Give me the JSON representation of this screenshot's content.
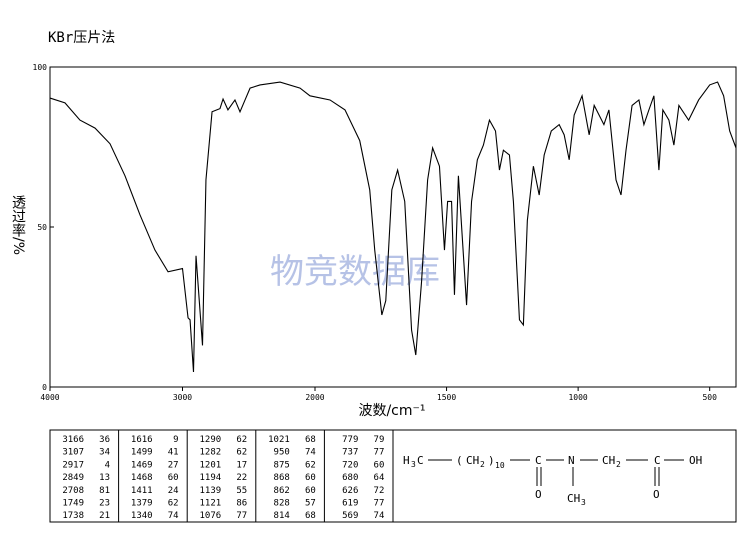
{
  "chart_data": {
    "type": "line",
    "title": "KBr压片法",
    "xlabel": "波数/cm⁻¹",
    "ylabel": "透过率/%",
    "watermark": "物竞数据库",
    "x": [
      4000,
      3887,
      3774,
      3660,
      3547,
      3434,
      3321,
      3208,
      3109,
      3000,
      2958,
      2943,
      2917,
      2898,
      2849,
      2823,
      2777,
      2717,
      2694,
      2657,
      2604,
      2566,
      2528,
      2490,
      2415,
      2264,
      2113,
      2038,
      1943,
      1886,
      1830,
      1792,
      1773,
      1746,
      1731,
      1708,
      1686,
      1659,
      1633,
      1617,
      1595,
      1572,
      1553,
      1527,
      1508,
      1496,
      1481,
      1470,
      1455,
      1424,
      1405,
      1383,
      1360,
      1337,
      1314,
      1299,
      1284,
      1261,
      1246,
      1223,
      1208,
      1193,
      1170,
      1148,
      1129,
      1102,
      1072,
      1053,
      1034,
      1015,
      985,
      958,
      939,
      902,
      883,
      856,
      837,
      818,
      795,
      769,
      750,
      731,
      712,
      693,
      678,
      655,
      636,
      617,
      580,
      542,
      500,
      470,
      447,
      424,
      400
    ],
    "values": [
      90.3,
      88.8,
      83.4,
      80.9,
      76,
      66,
      53.8,
      42.8,
      36,
      37,
      21.6,
      21,
      4.7,
      41,
      13,
      64.7,
      86,
      87,
      90,
      86.6,
      89.7,
      86,
      89.7,
      93.4,
      94.4,
      95.3,
      93.4,
      91,
      89.7,
      86.6,
      77,
      61.6,
      42.8,
      22.5,
      27,
      61.6,
      67.8,
      58,
      17.8,
      10,
      33,
      64.7,
      74.7,
      69,
      42.8,
      58,
      58,
      28.8,
      66,
      25.6,
      58,
      71,
      75.6,
      83.4,
      80,
      67.8,
      74,
      72.5,
      58,
      21,
      19.4,
      52,
      69,
      60,
      72.5,
      80,
      82,
      78.8,
      71,
      85,
      91,
      78.8,
      88,
      82,
      86.6,
      64.7,
      60,
      74,
      88,
      89.7,
      82,
      86.6,
      91,
      67.8,
      86.6,
      83.4,
      75.6,
      88,
      83.4,
      89.7,
      94.4,
      95.3,
      91,
      80,
      74.7
    ],
    "color": "#000000",
    "xlim": [
      4000,
      400
    ],
    "xticks": [
      4000,
      3000,
      2000,
      1500,
      1000,
      500
    ],
    "xscale_break": 2000,
    "ylim": [
      0,
      100
    ],
    "yticks": [
      0,
      50,
      100
    ]
  },
  "peak_table": {
    "columns": [
      [
        [
          "3166",
          "36"
        ],
        [
          "3107",
          "34"
        ],
        [
          "2917",
          "4"
        ],
        [
          "2849",
          "13"
        ],
        [
          "2708",
          "81"
        ],
        [
          "1749",
          "23"
        ],
        [
          "1738",
          "21"
        ]
      ],
      [
        [
          "1616",
          "9"
        ],
        [
          "1499",
          "41"
        ],
        [
          "1469",
          "27"
        ],
        [
          "1468",
          "60"
        ],
        [
          "1411",
          "24"
        ],
        [
          "1379",
          "62"
        ],
        [
          "1340",
          "74"
        ]
      ],
      [
        [
          "1290",
          "62"
        ],
        [
          "1282",
          "62"
        ],
        [
          "1201",
          "17"
        ],
        [
          "1194",
          "22"
        ],
        [
          "1139",
          "55"
        ],
        [
          "1121",
          "86"
        ],
        [
          "1076",
          "77"
        ]
      ],
      [
        [
          "1021",
          "68"
        ],
        [
          "950",
          "74"
        ],
        [
          "875",
          "62"
        ],
        [
          "868",
          "60"
        ],
        [
          "862",
          "60"
        ],
        [
          "828",
          "57"
        ],
        [
          "814",
          "68"
        ]
      ],
      [
        [
          "779",
          "79"
        ],
        [
          "737",
          "77"
        ],
        [
          "720",
          "60"
        ],
        [
          "680",
          "64"
        ],
        [
          "626",
          "72"
        ],
        [
          "619",
          "77"
        ],
        [
          "569",
          "74"
        ]
      ]
    ]
  },
  "structure": {
    "pieces": [
      "H",
      "3",
      "C",
      "(",
      "CH",
      "2",
      ")",
      "10",
      "C",
      "N",
      "CH",
      "2",
      "C",
      "OH",
      "O",
      "CH",
      "3",
      "O"
    ]
  }
}
